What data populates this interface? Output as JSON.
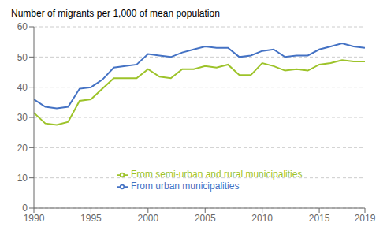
{
  "chart_data": {
    "type": "line",
    "ylabel": "Number of migrants per 1,000 of mean population",
    "x": [
      1990,
      1991,
      1992,
      1993,
      1994,
      1995,
      1996,
      1997,
      1998,
      1999,
      2000,
      2001,
      2002,
      2003,
      2004,
      2005,
      2006,
      2007,
      2008,
      2009,
      2010,
      2011,
      2012,
      2013,
      2014,
      2015,
      2016,
      2017,
      2018,
      2019
    ],
    "series": [
      {
        "name": "From urban municipalities",
        "color": "#4472c4",
        "values": [
          36.0,
          33.5,
          33.0,
          33.5,
          39.5,
          40.0,
          42.5,
          46.5,
          47.0,
          47.5,
          51.0,
          50.5,
          50.0,
          51.5,
          52.5,
          53.5,
          53.0,
          53.0,
          50.0,
          50.5,
          52.0,
          52.5,
          50.0,
          50.5,
          50.5,
          52.5,
          53.5,
          54.5,
          53.5,
          53.0
        ]
      },
      {
        "name": "From semi-urban and rural municipalities",
        "color": "#9dc32a",
        "values": [
          31.5,
          28.0,
          27.5,
          28.5,
          35.5,
          36.0,
          39.5,
          43.0,
          43.0,
          43.0,
          46.0,
          43.5,
          43.0,
          46.0,
          46.0,
          47.0,
          46.5,
          47.5,
          44.0,
          44.0,
          48.0,
          47.0,
          45.5,
          46.0,
          45.5,
          47.5,
          48.0,
          49.0,
          48.5,
          48.5
        ]
      }
    ],
    "xlim": [
      1990,
      2019
    ],
    "xticks": [
      1990,
      1995,
      2000,
      2005,
      2010,
      2015,
      2019
    ],
    "ylim": [
      0,
      60
    ],
    "yticks": [
      0,
      10,
      20,
      30,
      40,
      50,
      60
    ],
    "grid": true,
    "legend": "lower center"
  }
}
